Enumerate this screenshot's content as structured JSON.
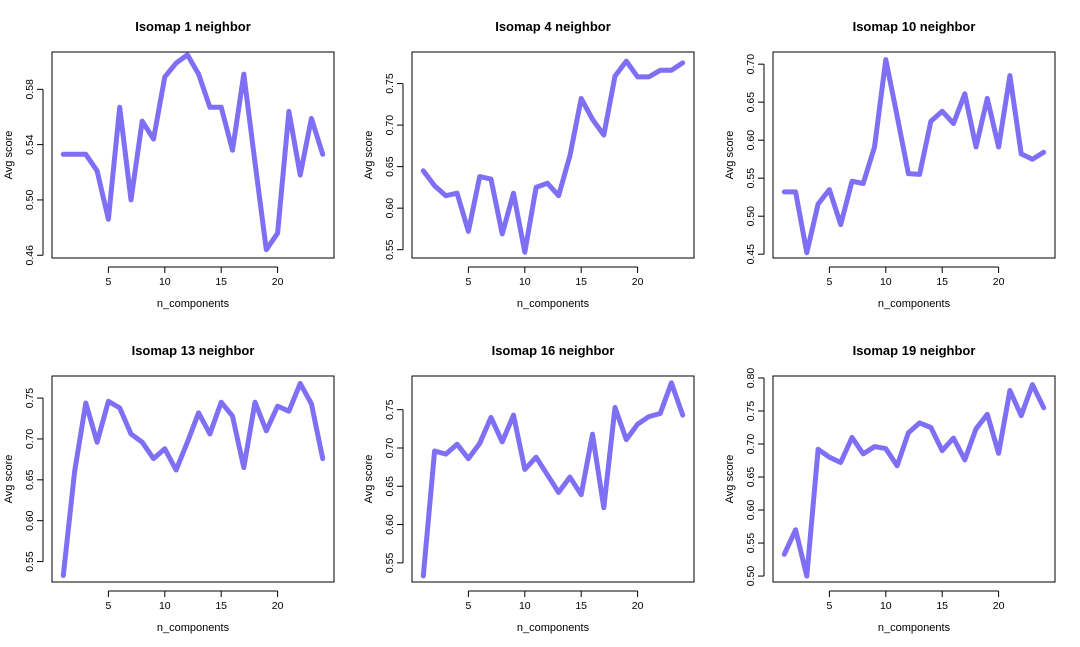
{
  "colors": {
    "line": "#7F6FF5"
  },
  "chart_data": [
    {
      "type": "line",
      "title": "Isomap 1 neighbor",
      "xlabel": "n_components",
      "ylabel": "Avg score",
      "xlim": [
        0,
        25
      ],
      "ylim": [
        0.458,
        0.607
      ],
      "xticks": [
        5,
        10,
        15,
        20
      ],
      "yticks": [
        0.46,
        0.5,
        0.54,
        0.58
      ],
      "x": [
        1,
        2,
        3,
        4,
        5,
        6,
        7,
        8,
        9,
        10,
        11,
        12,
        13,
        14,
        15,
        16,
        17,
        18,
        19,
        20,
        21,
        22,
        23,
        24
      ],
      "values": [
        0.533,
        0.533,
        0.533,
        0.521,
        0.486,
        0.567,
        0.5,
        0.557,
        0.544,
        0.589,
        0.599,
        0.605,
        0.591,
        0.567,
        0.567,
        0.536,
        0.591,
        0.527,
        0.464,
        0.476,
        0.564,
        0.518,
        0.559,
        0.533
      ]
    },
    {
      "type": "line",
      "title": "Isomap 4 neighbor",
      "xlabel": "n_components",
      "ylabel": "Avg score",
      "xlim": [
        0,
        25
      ],
      "ylim": [
        0.54,
        0.788
      ],
      "xticks": [
        5,
        10,
        15,
        20
      ],
      "yticks": [
        0.55,
        0.6,
        0.65,
        0.7,
        0.75
      ],
      "x": [
        1,
        2,
        3,
        4,
        5,
        6,
        7,
        8,
        9,
        10,
        11,
        12,
        13,
        14,
        15,
        16,
        17,
        18,
        19,
        20,
        21,
        22,
        23,
        24
      ],
      "values": [
        0.645,
        0.627,
        0.615,
        0.618,
        0.572,
        0.638,
        0.635,
        0.569,
        0.618,
        0.547,
        0.625,
        0.63,
        0.615,
        0.663,
        0.732,
        0.707,
        0.688,
        0.759,
        0.777,
        0.758,
        0.758,
        0.766,
        0.766,
        0.775
      ]
    },
    {
      "type": "line",
      "title": "Isomap 10 neighbor",
      "xlabel": "n_components",
      "ylabel": "Avg score",
      "xlim": [
        0,
        25
      ],
      "ylim": [
        0.445,
        0.716
      ],
      "xticks": [
        5,
        10,
        15,
        20
      ],
      "yticks": [
        0.45,
        0.5,
        0.55,
        0.6,
        0.65,
        0.7
      ],
      "x": [
        1,
        2,
        3,
        4,
        5,
        6,
        7,
        8,
        9,
        10,
        11,
        12,
        13,
        14,
        15,
        16,
        17,
        18,
        19,
        20,
        21,
        22,
        23,
        24
      ],
      "values": [
        0.532,
        0.532,
        0.452,
        0.516,
        0.535,
        0.489,
        0.546,
        0.543,
        0.591,
        0.706,
        0.632,
        0.556,
        0.555,
        0.625,
        0.638,
        0.622,
        0.661,
        0.591,
        0.655,
        0.591,
        0.685,
        0.582,
        0.575,
        0.584
      ]
    },
    {
      "type": "line",
      "title": "Isomap 13 neighbor",
      "xlabel": "n_components",
      "ylabel": "Avg score",
      "xlim": [
        0,
        25
      ],
      "ylim": [
        0.525,
        0.777
      ],
      "xticks": [
        5,
        10,
        15,
        20
      ],
      "yticks": [
        0.55,
        0.6,
        0.65,
        0.7,
        0.75
      ],
      "x": [
        1,
        2,
        3,
        4,
        5,
        6,
        7,
        8,
        9,
        10,
        11,
        12,
        13,
        14,
        15,
        16,
        17,
        18,
        19,
        20,
        21,
        22,
        23,
        24
      ],
      "values": [
        0.533,
        0.66,
        0.744,
        0.696,
        0.746,
        0.738,
        0.706,
        0.696,
        0.676,
        0.688,
        0.662,
        0.696,
        0.732,
        0.706,
        0.745,
        0.728,
        0.665,
        0.745,
        0.71,
        0.74,
        0.734,
        0.768,
        0.743,
        0.676
      ]
    },
    {
      "type": "line",
      "title": "Isomap 16 neighbor",
      "xlabel": "n_components",
      "ylabel": "Avg score",
      "xlim": [
        0,
        25
      ],
      "ylim": [
        0.525,
        0.794
      ],
      "xticks": [
        5,
        10,
        15,
        20
      ],
      "yticks": [
        0.55,
        0.6,
        0.65,
        0.7,
        0.75
      ],
      "x": [
        1,
        2,
        3,
        4,
        5,
        6,
        7,
        8,
        9,
        10,
        11,
        12,
        13,
        14,
        15,
        16,
        17,
        18,
        19,
        20,
        21,
        22,
        23,
        24
      ],
      "values": [
        0.533,
        0.696,
        0.692,
        0.705,
        0.686,
        0.706,
        0.74,
        0.708,
        0.743,
        0.672,
        0.688,
        0.665,
        0.642,
        0.662,
        0.639,
        0.718,
        0.622,
        0.753,
        0.711,
        0.731,
        0.741,
        0.745,
        0.785,
        0.743
      ]
    },
    {
      "type": "line",
      "title": "Isomap 19 neighbor",
      "xlabel": "n_components",
      "ylabel": "Avg score",
      "xlim": [
        0,
        25
      ],
      "ylim": [
        0.491,
        0.803
      ],
      "xticks": [
        5,
        10,
        15,
        20
      ],
      "yticks": [
        0.5,
        0.55,
        0.6,
        0.65,
        0.7,
        0.75,
        0.8
      ],
      "x": [
        1,
        2,
        3,
        4,
        5,
        6,
        7,
        8,
        9,
        10,
        11,
        12,
        13,
        14,
        15,
        16,
        17,
        18,
        19,
        20,
        21,
        22,
        23,
        24
      ],
      "values": [
        0.533,
        0.57,
        0.5,
        0.692,
        0.68,
        0.672,
        0.71,
        0.685,
        0.696,
        0.693,
        0.667,
        0.717,
        0.732,
        0.725,
        0.69,
        0.709,
        0.676,
        0.723,
        0.745,
        0.686,
        0.781,
        0.743,
        0.79,
        0.755
      ]
    }
  ]
}
